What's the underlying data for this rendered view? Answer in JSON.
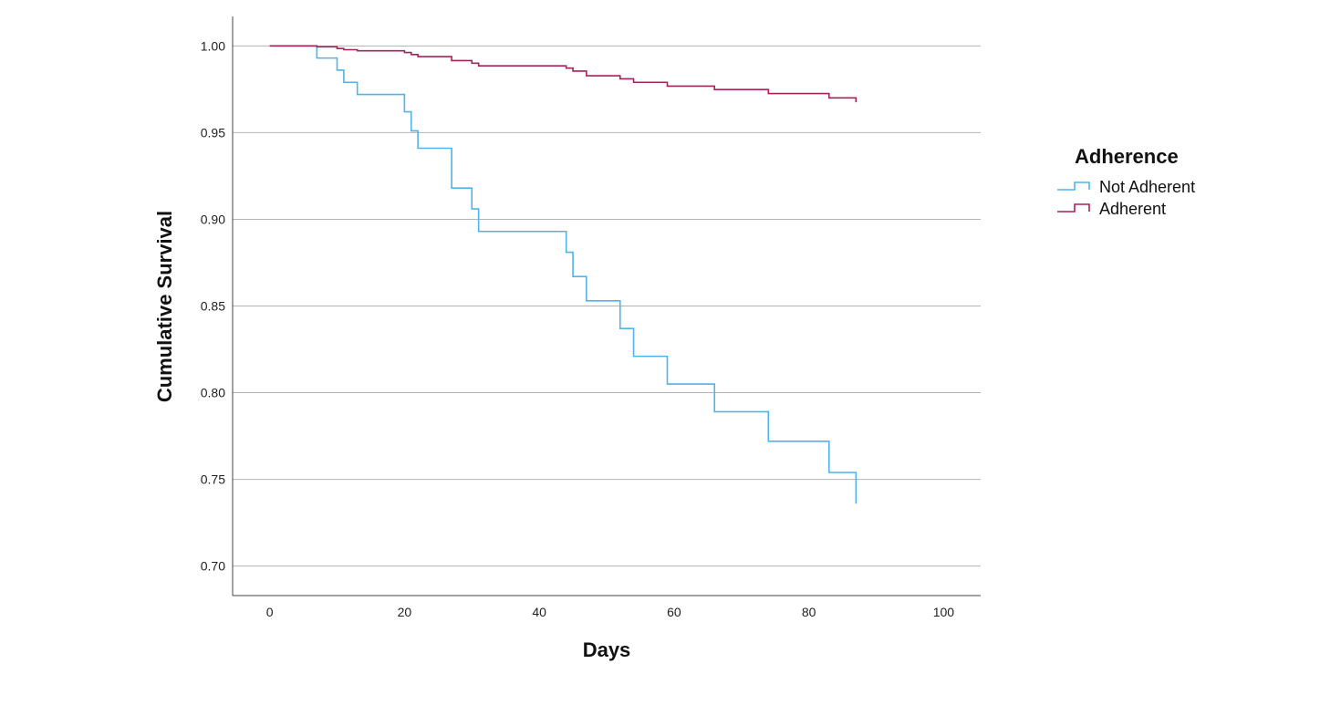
{
  "chart_data": {
    "type": "line",
    "step": true,
    "xlabel": "Days",
    "ylabel": "Cumulative Survival",
    "xlim": [
      -5.5,
      105.5
    ],
    "ylim": [
      0.683,
      1.017
    ],
    "xticks": [
      0,
      20,
      40,
      60,
      80,
      100
    ],
    "xtick_labels": [
      "0",
      "20",
      "40",
      "60",
      "80",
      "100"
    ],
    "yticks": [
      0.7,
      0.75,
      0.8,
      0.85,
      0.9,
      0.95,
      1.0
    ],
    "ytick_labels": [
      "0.70",
      "0.75",
      "0.80",
      "0.85",
      "0.90",
      "0.95",
      "1.00"
    ],
    "grid": {
      "horizontal": true,
      "vertical": false,
      "color": "#b3b3b3"
    },
    "legend": {
      "title": "Adherence",
      "position": "right"
    },
    "series": [
      {
        "name": "Not Adherent",
        "color": "#4fb3ec",
        "x": [
          0,
          7,
          10,
          11,
          13,
          20,
          21,
          22,
          27,
          30,
          31,
          44,
          45,
          47,
          52,
          54,
          59,
          66,
          74,
          83,
          87
        ],
        "y": [
          1.0,
          0.993,
          0.986,
          0.979,
          0.972,
          0.962,
          0.951,
          0.941,
          0.918,
          0.906,
          0.893,
          0.881,
          0.867,
          0.853,
          0.837,
          0.821,
          0.805,
          0.789,
          0.772,
          0.754,
          0.736
        ]
      },
      {
        "name": "Adherent",
        "color": "#a3245a",
        "x": [
          0,
          7,
          10,
          11,
          13,
          20,
          21,
          22,
          27,
          30,
          31,
          44,
          45,
          47,
          52,
          54,
          59,
          66,
          74,
          83,
          87
        ],
        "y": [
          1.0,
          0.9995,
          0.9985,
          0.9978,
          0.9972,
          0.9962,
          0.995,
          0.9938,
          0.9915,
          0.99,
          0.9885,
          0.9872,
          0.9855,
          0.9828,
          0.981,
          0.979,
          0.9768,
          0.9748,
          0.9725,
          0.97,
          0.9675
        ]
      }
    ]
  }
}
